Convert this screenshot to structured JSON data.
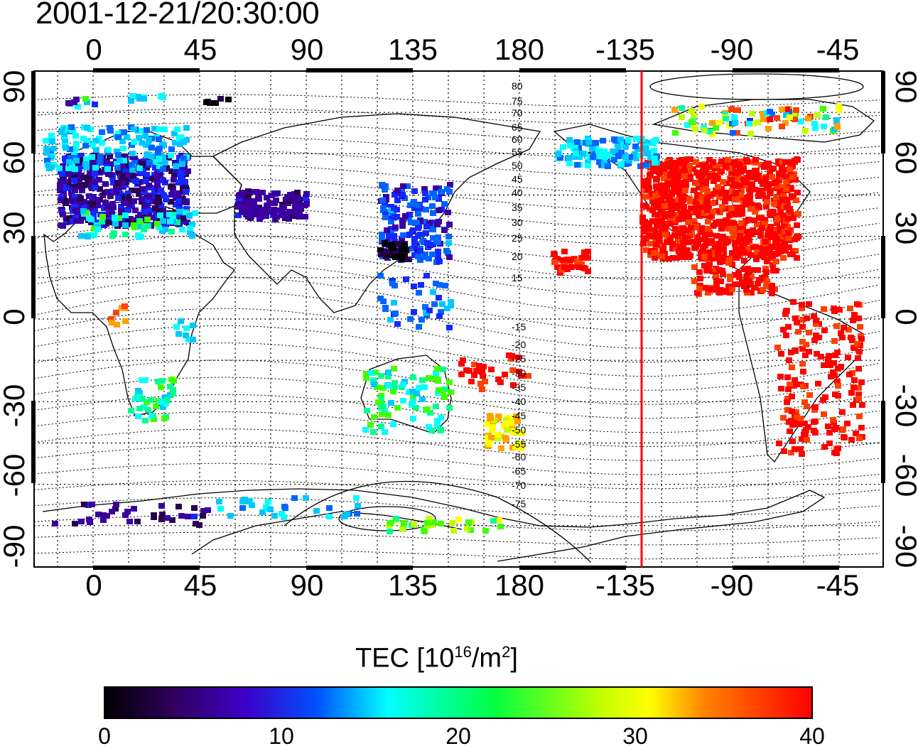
{
  "title": "2001-12-21/20:30:00",
  "map": {
    "lon_ticks": [
      "0",
      "45",
      "90",
      "135",
      "180",
      "-135",
      "-90",
      "-45"
    ],
    "lat_ticks": [
      "90",
      "60",
      "30",
      "0",
      "-30",
      "-60",
      "-90"
    ],
    "contour_labels_north": [
      "80",
      "75",
      "70",
      "65",
      "60",
      "55",
      "50",
      "45",
      "40",
      "35",
      "30",
      "25",
      "20",
      "15"
    ],
    "contour_labels_south": [
      "-15",
      "-20",
      "-25",
      "-30",
      "-35",
      "-40",
      "-45",
      "-50",
      "-55",
      "-60",
      "-65",
      "-70",
      "-75"
    ],
    "terminator_line_color": "#ff0000",
    "coastline_color": "#000000"
  },
  "colorbar": {
    "title_prefix": "TEC  [10",
    "title_exp": "16",
    "title_mid": "/m",
    "title_exp2": "2",
    "title_suffix": "]",
    "ticks": [
      "0",
      "10",
      "20",
      "30",
      "40"
    ],
    "min": 0,
    "max": 40,
    "colormap": [
      "#000000",
      "#3c0078",
      "#0000ff",
      "#00ffff",
      "#00ff00",
      "#ffff00",
      "#ff8000",
      "#ff0000"
    ]
  }
}
